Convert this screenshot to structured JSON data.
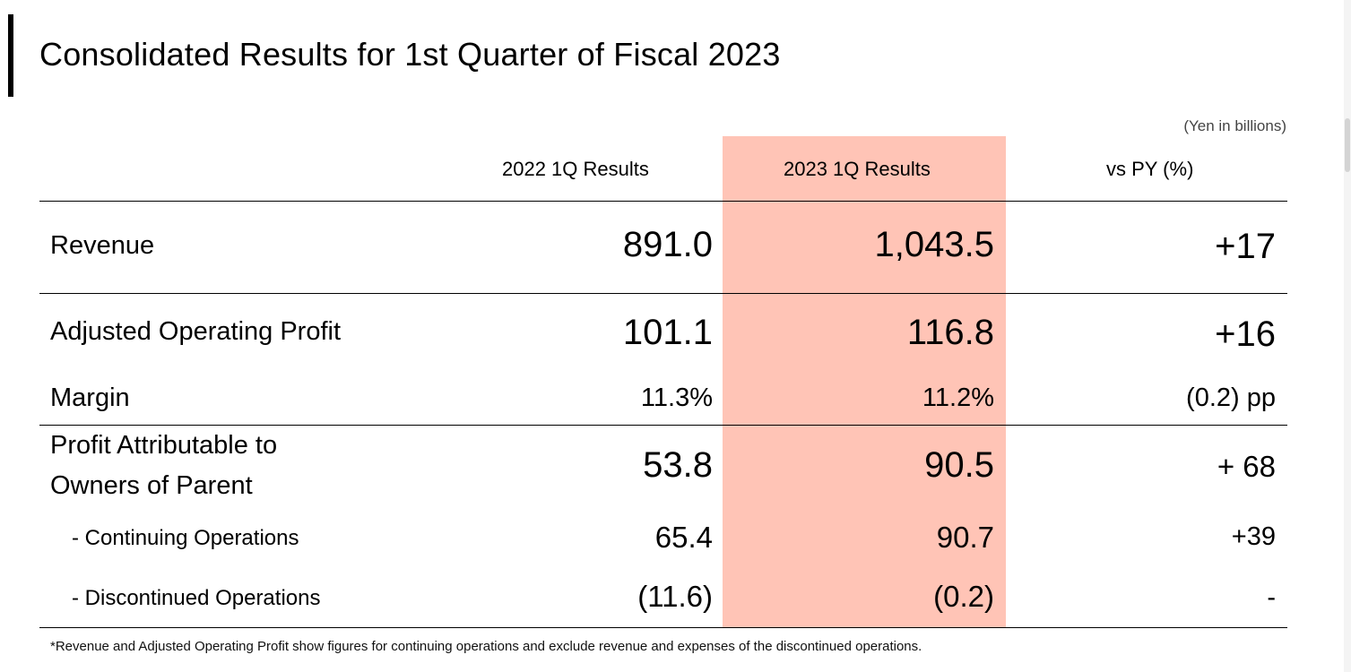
{
  "title": "Consolidated Results for 1st Quarter of Fiscal 2023",
  "unit_note": "(Yen in billions)",
  "columns": {
    "prior": "2022 1Q Results",
    "current": "2023 1Q Results",
    "change": "vs PY (%)"
  },
  "rows": {
    "revenue": {
      "label": "Revenue",
      "prior": "891.0",
      "current": "1,043.5",
      "change": "+17"
    },
    "aop": {
      "label": "Adjusted Operating Profit",
      "prior": "101.1",
      "current": "116.8",
      "change": "+16"
    },
    "margin": {
      "label": "Margin",
      "prior": "11.3%",
      "current": "11.2%",
      "change": "(0.2) pp"
    },
    "profit_parent": {
      "label_line1": "Profit Attributable to",
      "label_line2": "Owners of Parent",
      "prior": "53.8",
      "current": "90.5",
      "change": "+ 68"
    },
    "continuing": {
      "label": "- Continuing Operations",
      "prior": "65.4",
      "current": "90.7",
      "change": "+39"
    },
    "discontinued": {
      "label": "- Discontinued Operations",
      "prior": "(11.6)",
      "current": "(0.2)",
      "change": "-"
    }
  },
  "footnote": "*Revenue and Adjusted Operating Profit show figures for continuing operations and exclude revenue and expenses of the discontinued operations.",
  "colors": {
    "highlight": "#ffc4b6",
    "text": "#000000"
  }
}
